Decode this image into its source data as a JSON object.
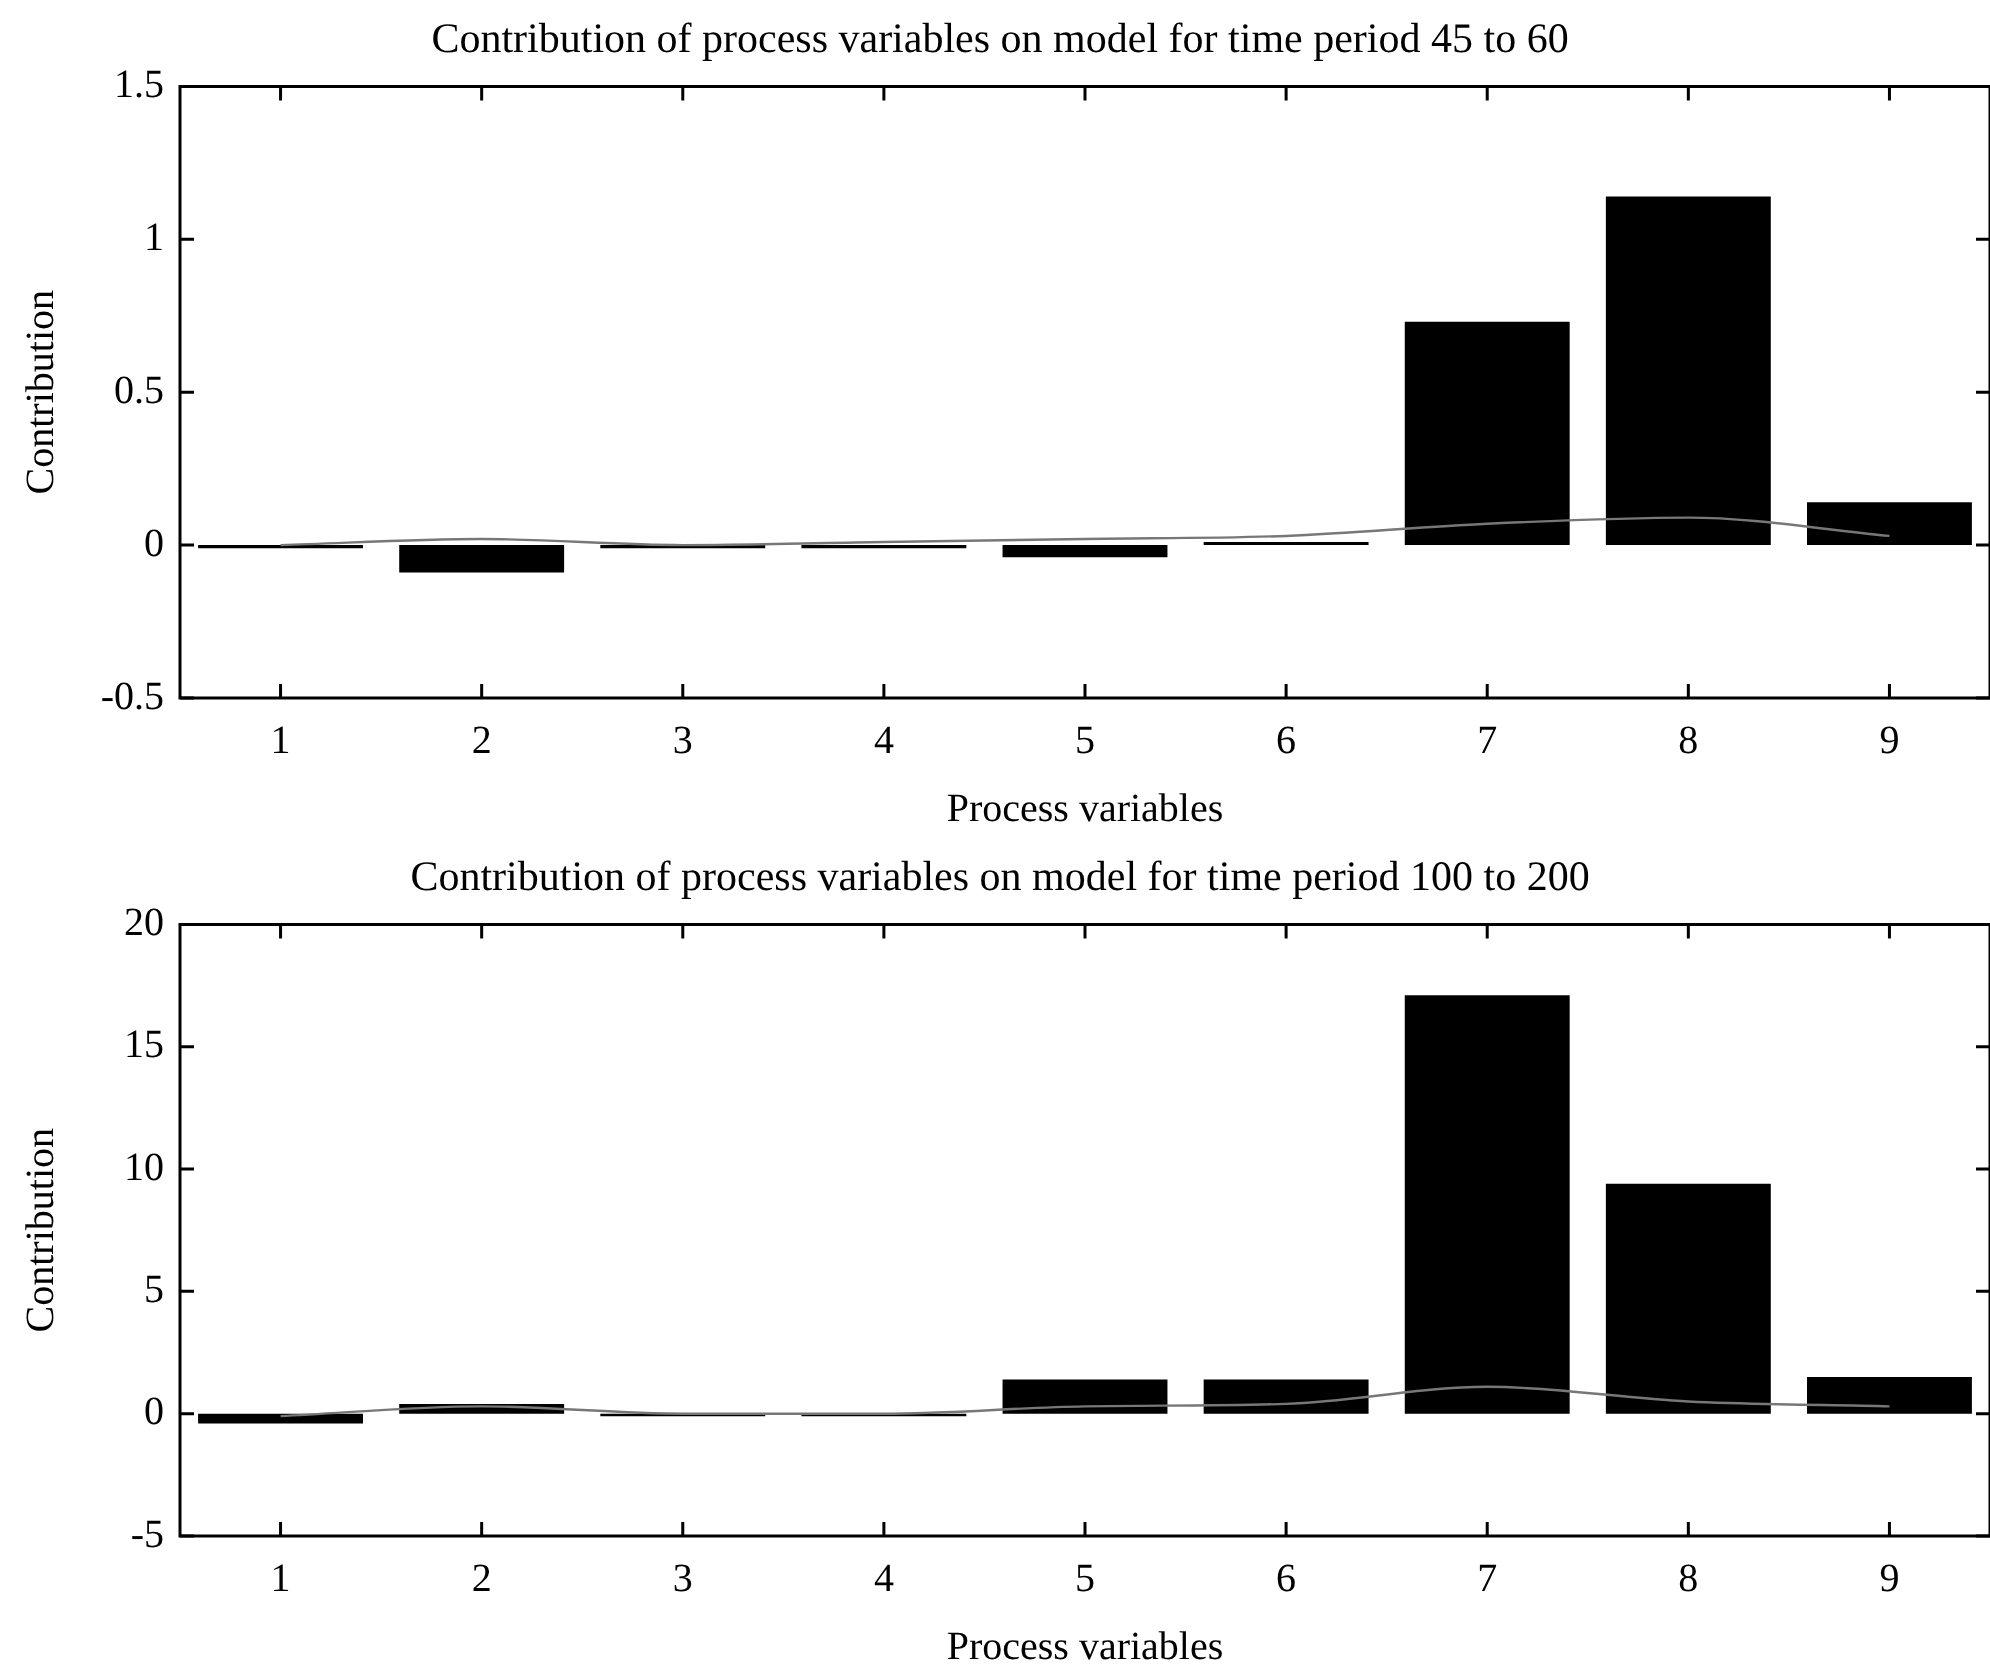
{
  "chart_data": [
    {
      "type": "bar",
      "title": "Contribution of process variables on model for time period 45 to 60",
      "xlabel": "Process variables",
      "ylabel": "Contribution",
      "categories": [
        "1",
        "2",
        "3",
        "4",
        "5",
        "6",
        "7",
        "8",
        "9"
      ],
      "series": [
        {
          "color": "#000000",
          "values": [
            -0.01,
            -0.09,
            -0.01,
            -0.01,
            -0.04,
            0.01,
            0.73,
            1.14,
            0.14
          ]
        },
        {
          "type": "line",
          "color": "#777777",
          "values": [
            0,
            0.02,
            0,
            0.01,
            0.02,
            0.03,
            0.07,
            0.09,
            0.03
          ]
        }
      ],
      "ylim": [
        -0.5,
        1.5
      ],
      "yticks": [
        -0.5,
        0,
        0.5,
        1,
        1.5
      ],
      "grid": false,
      "legend": false,
      "marker": "none",
      "line_style": "solid"
    },
    {
      "type": "bar",
      "title": "Contribution of process variables on model for time period 100 to 200",
      "xlabel": "Process variables",
      "ylabel": "Contribution",
      "categories": [
        "1",
        "2",
        "3",
        "4",
        "5",
        "6",
        "7",
        "8",
        "9"
      ],
      "series": [
        {
          "color": "#000000",
          "values": [
            -0.4,
            0.4,
            -0.1,
            -0.1,
            1.4,
            1.4,
            17.1,
            9.4,
            1.5
          ]
        },
        {
          "type": "line",
          "color": "#777777",
          "values": [
            -0.1,
            0.3,
            0,
            0,
            0.3,
            0.4,
            1.1,
            0.5,
            0.3
          ]
        }
      ],
      "ylim": [
        -5,
        20
      ],
      "yticks": [
        -5,
        0,
        5,
        10,
        15,
        20
      ],
      "grid": false,
      "legend": false,
      "marker": "none",
      "line_style": "solid"
    }
  ]
}
